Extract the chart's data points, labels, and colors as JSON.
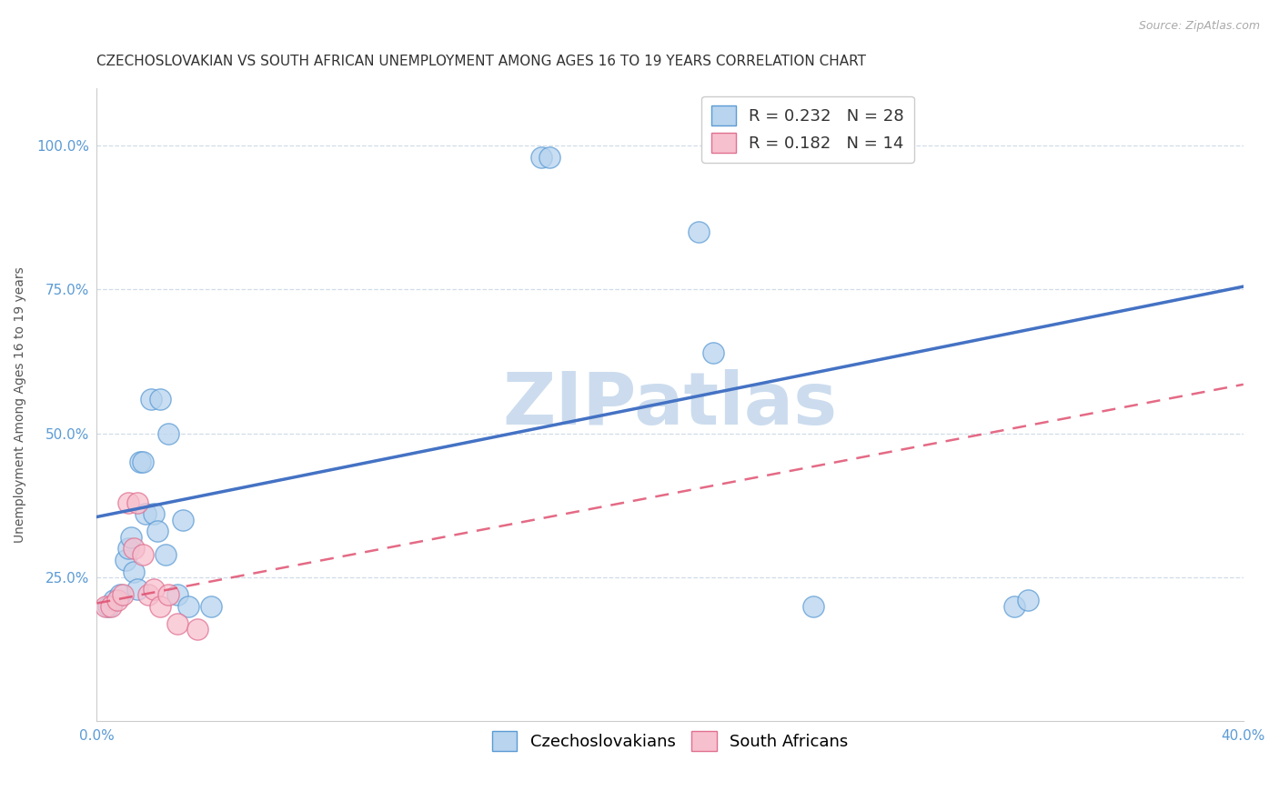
{
  "title": "CZECHOSLOVAKIAN VS SOUTH AFRICAN UNEMPLOYMENT AMONG AGES 16 TO 19 YEARS CORRELATION CHART",
  "source": "Source: ZipAtlas.com",
  "ylabel": "Unemployment Among Ages 16 to 19 years",
  "xlim": [
    0.0,
    0.4
  ],
  "ylim": [
    0.0,
    1.1
  ],
  "xticks": [
    0.0,
    0.08,
    0.16,
    0.24,
    0.32,
    0.4
  ],
  "xtick_labels": [
    "0.0%",
    "",
    "",
    "",
    "",
    "40.0%"
  ],
  "ytick_positions": [
    0.25,
    0.5,
    0.75,
    1.0
  ],
  "ytick_labels": [
    "25.0%",
    "50.0%",
    "75.0%",
    "100.0%"
  ],
  "czech_x": [
    0.004,
    0.006,
    0.008,
    0.01,
    0.011,
    0.012,
    0.013,
    0.014,
    0.015,
    0.016,
    0.017,
    0.019,
    0.02,
    0.021,
    0.022,
    0.024,
    0.025,
    0.028,
    0.03,
    0.032,
    0.04,
    0.155,
    0.158,
    0.21,
    0.215,
    0.25,
    0.32,
    0.325
  ],
  "czech_y": [
    0.2,
    0.21,
    0.22,
    0.28,
    0.3,
    0.32,
    0.26,
    0.23,
    0.45,
    0.45,
    0.36,
    0.56,
    0.36,
    0.33,
    0.56,
    0.29,
    0.5,
    0.22,
    0.35,
    0.2,
    0.2,
    0.98,
    0.98,
    0.85,
    0.64,
    0.2,
    0.2,
    0.21
  ],
  "sa_x": [
    0.003,
    0.005,
    0.007,
    0.009,
    0.011,
    0.013,
    0.014,
    0.016,
    0.018,
    0.02,
    0.022,
    0.025,
    0.028,
    0.035
  ],
  "sa_y": [
    0.2,
    0.2,
    0.21,
    0.22,
    0.38,
    0.3,
    0.38,
    0.29,
    0.22,
    0.23,
    0.2,
    0.22,
    0.17,
    0.16
  ],
  "czech_R": 0.232,
  "czech_N": 28,
  "sa_R": 0.182,
  "sa_N": 14,
  "czech_color": "#b8d4ee",
  "czech_edge_color": "#5b9bd5",
  "sa_color": "#f7c0ce",
  "sa_edge_color": "#e07090",
  "czech_line_color": "#4472c4",
  "sa_line_color": "#e05070",
  "watermark": "ZIPatlas",
  "watermark_color": "#ccdcee",
  "background_color": "#ffffff",
  "grid_color": "#d0dce8",
  "title_color": "#333333",
  "tick_color": "#5b9bd5",
  "title_fontsize": 11,
  "axis_label_fontsize": 10,
  "tick_fontsize": 11,
  "legend_fontsize": 13,
  "source_fontsize": 9,
  "czech_line_intercept": 0.355,
  "czech_line_slope": 1.0,
  "sa_line_intercept": 0.205,
  "sa_line_slope": 0.95
}
